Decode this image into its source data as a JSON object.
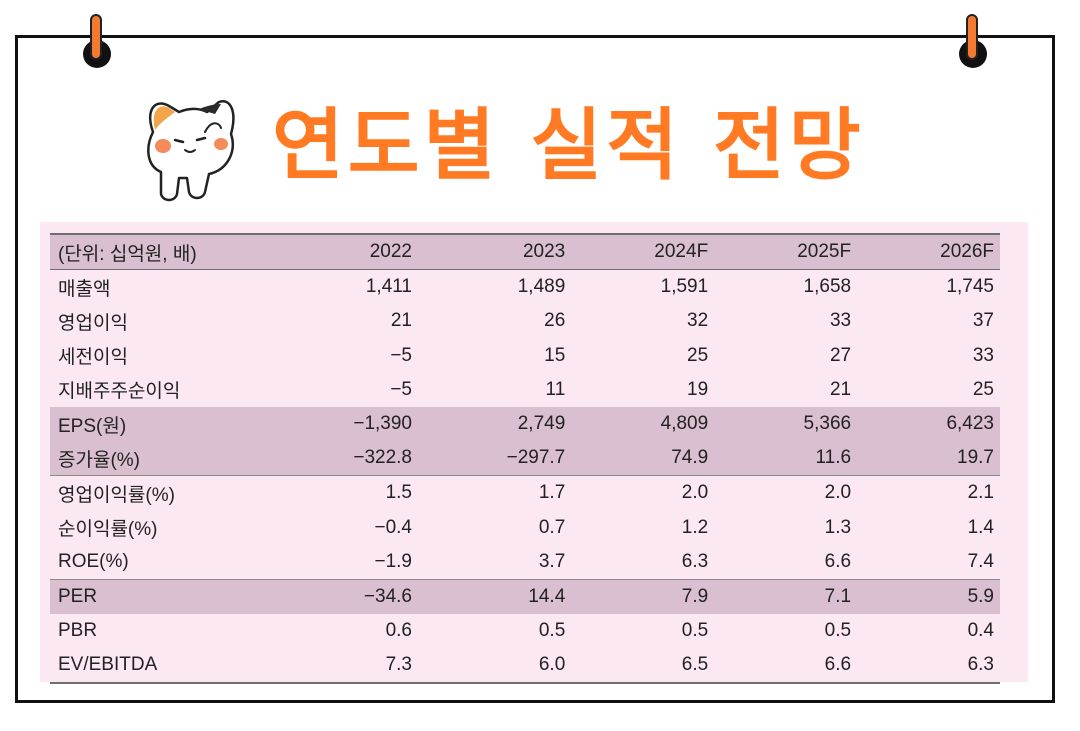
{
  "header": {
    "title": "연도별 실적 전망"
  },
  "table": {
    "columns": [
      "(단위: 십억원, 배)",
      "2022",
      "2023",
      "2024F",
      "2025F",
      "2026F"
    ],
    "rows": [
      {
        "label": "매출액",
        "values": [
          "1,411",
          "1,489",
          "1,591",
          "1,658",
          "1,745"
        ]
      },
      {
        "label": "영업이익",
        "values": [
          "21",
          "26",
          "32",
          "33",
          "37"
        ]
      },
      {
        "label": "세전이익",
        "values": [
          "−5",
          "15",
          "25",
          "27",
          "33"
        ]
      },
      {
        "label": "지배주주순이익",
        "values": [
          "−5",
          "11",
          "19",
          "21",
          "25"
        ]
      },
      {
        "label": "EPS(원)",
        "values": [
          "−1,390",
          "2,749",
          "4,809",
          "5,366",
          "6,423"
        ]
      },
      {
        "label": "증가율(%)",
        "values": [
          "−322.8",
          "−297.7",
          "74.9",
          "11.6",
          "19.7"
        ]
      },
      {
        "label": "영업이익률(%)",
        "values": [
          "1.5",
          "1.7",
          "2.0",
          "2.0",
          "2.1"
        ]
      },
      {
        "label": "순이익률(%)",
        "values": [
          "−0.4",
          "0.7",
          "1.2",
          "1.3",
          "1.4"
        ]
      },
      {
        "label": "ROE(%)",
        "values": [
          "−1.9",
          "3.7",
          "6.3",
          "6.6",
          "7.4"
        ]
      },
      {
        "label": "PER",
        "values": [
          "−34.6",
          "14.4",
          "7.9",
          "7.1",
          "5.9"
        ]
      },
      {
        "label": "PBR",
        "values": [
          "0.6",
          "0.5",
          "0.5",
          "0.5",
          "0.4"
        ]
      },
      {
        "label": "EV/EBITDA",
        "values": [
          "7.3",
          "6.0",
          "6.5",
          "6.6",
          "6.3"
        ]
      }
    ]
  },
  "icons": {
    "mascot": "cat-mascot-icon",
    "pin_left": "pin-icon",
    "pin_right": "pin-icon"
  },
  "colors": {
    "title": "#ff7a22",
    "panel": "#fce8f3",
    "row_shade": "#d9bfcf",
    "border": "#111111",
    "pin": "#f47a32"
  }
}
